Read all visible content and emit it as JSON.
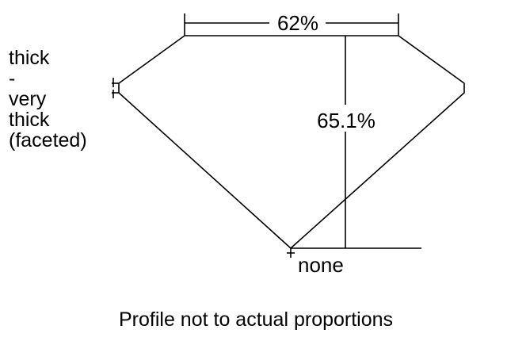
{
  "diagram": {
    "table_percent": "62%",
    "depth_percent": "65.1%",
    "culet": "none",
    "girdle_lines": [
      "thick",
      "-",
      "very",
      "thick",
      "(faceted)"
    ],
    "caption": "Profile not to actual proportions",
    "line_color": "#000000"
  }
}
